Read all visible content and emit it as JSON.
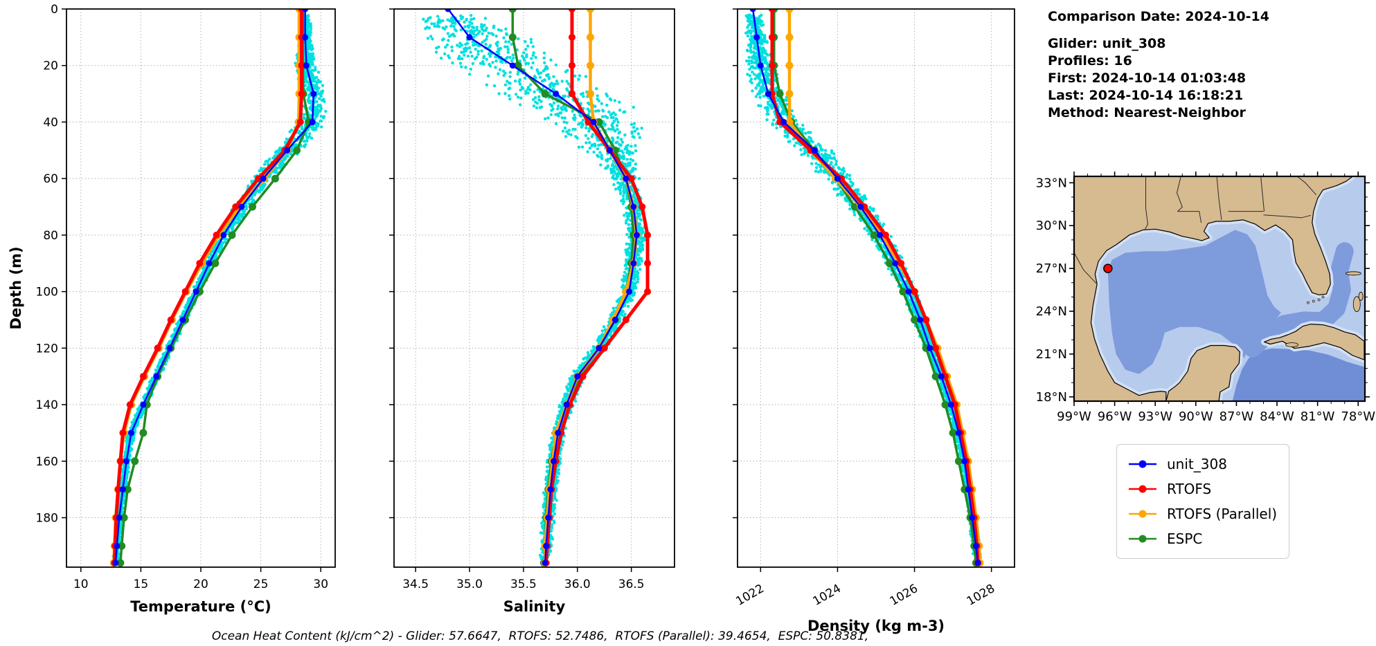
{
  "info": {
    "comparison_date": "Comparison Date: 2024-10-14",
    "glider": "Glider: unit_308",
    "profiles": "Profiles: 16",
    "first": "First: 2024-10-14 01:03:48",
    "last": "Last: 2024-10-14 16:18:21",
    "method": "Method: Nearest-Neighbor"
  },
  "legend": {
    "entries": [
      {
        "label": "unit_308",
        "color": "#0000ff"
      },
      {
        "label": "RTOFS",
        "color": "#ff0000"
      },
      {
        "label": "RTOFS (Parallel)",
        "color": "#ffa500"
      },
      {
        "label": "ESPC",
        "color": "#228b22"
      }
    ]
  },
  "caption": {
    "text": "Ocean Heat Content (kJ/cm^2) - Glider: 57.6647,  RTOFS: 52.7486,  RTOFS (Parallel): 39.4654,  ESPC: 50.8381,"
  },
  "map": {
    "lat_ticks": [
      {
        "value": 33,
        "label": "33°N"
      },
      {
        "value": 30,
        "label": "30°N"
      },
      {
        "value": 27,
        "label": "27°N"
      },
      {
        "value": 24,
        "label": "24°N"
      },
      {
        "value": 21,
        "label": "21°N"
      },
      {
        "value": 18,
        "label": "18°N"
      }
    ],
    "lon_ticks": [
      {
        "value": -99,
        "label": "99°W"
      },
      {
        "value": -96,
        "label": "96°W"
      },
      {
        "value": -93,
        "label": "93°W"
      },
      {
        "value": -90,
        "label": "90°W"
      },
      {
        "value": -87,
        "label": "87°W"
      },
      {
        "value": -84,
        "label": "84°W"
      },
      {
        "value": -81,
        "label": "81°W"
      },
      {
        "value": -78,
        "label": "78°W"
      }
    ],
    "marker": {
      "lon": -96.5,
      "lat": 27.0,
      "color": "#ff0000"
    },
    "colors": {
      "land": "#d6ba90",
      "shelf": "#b7cbec",
      "deep": "#7e9bdc",
      "caribbean": "#6f8ed6",
      "nearshore": "#d3e0f3"
    }
  },
  "chart_data": {
    "type": "line",
    "description": "Glider unit_308 vs model vertical profiles (depth profiles of temperature, salinity, density) with raw glider scatter",
    "ylabel": "Depth (m)",
    "ylim": [
      0,
      197.5
    ],
    "yticks": [
      0,
      20,
      40,
      60,
      80,
      100,
      120,
      140,
      160,
      180
    ],
    "depth_m": [
      0,
      10,
      20,
      30,
      40,
      50,
      60,
      70,
      80,
      90,
      100,
      110,
      120,
      130,
      140,
      150,
      160,
      170,
      180,
      190,
      196
    ],
    "series_meta": [
      {
        "key": "espc",
        "label": "ESPC",
        "color": "#228b22",
        "line_width": 3.5,
        "marker_radius": 5.5
      },
      {
        "key": "parallel",
        "label": "RTOFS (Parallel)",
        "color": "#ffa500",
        "line_width": 4.5,
        "marker_radius": 5.5
      },
      {
        "key": "rtofs",
        "label": "RTOFS",
        "color": "#ff0000",
        "line_width": 5,
        "marker_radius": 5
      },
      {
        "key": "glider",
        "label": "unit_308",
        "color": "#0000ff",
        "line_width": 2.5,
        "marker_radius": 4.5
      }
    ],
    "scatter": {
      "name": "glider-raw-points",
      "color": "#00e0e0",
      "count": 2600,
      "radius": 2.2,
      "seed": 42,
      "depth_range": [
        2,
        196
      ]
    },
    "panels": [
      {
        "name": "temperature",
        "xlabel": "Temperature (°C)",
        "xlim": [
          8.8,
          31.2
        ],
        "xticks": [
          10,
          15,
          20,
          25,
          30
        ],
        "xtick_labels": [
          "10",
          "15",
          "20",
          "25",
          "30"
        ],
        "scatter_halfwidth": [
          [
            0,
            0.25
          ],
          [
            15,
            0.9
          ],
          [
            45,
            1.3
          ],
          [
            70,
            0.8
          ],
          [
            100,
            0.4
          ],
          [
            196,
            0.3
          ]
        ],
        "series": {
          "glider": [
            28.7,
            28.7,
            28.8,
            29.4,
            29.3,
            27.2,
            25.2,
            23.4,
            21.9,
            20.7,
            19.6,
            18.5,
            17.4,
            16.3,
            15.2,
            14.2,
            13.8,
            13.5,
            13.2,
            13.0,
            12.9
          ],
          "rtofs": [
            28.4,
            28.4,
            28.4,
            28.4,
            28.3,
            27.0,
            24.8,
            22.9,
            21.3,
            19.9,
            18.7,
            17.5,
            16.4,
            15.2,
            14.1,
            13.5,
            13.3,
            13.1,
            12.95,
            12.85,
            12.8
          ],
          "parallel": [
            28.2,
            28.2,
            28.2,
            28.2,
            28.15,
            27.2,
            25.3,
            23.2,
            21.5,
            20.1,
            18.8,
            17.6,
            16.5,
            15.3,
            14.2,
            13.6,
            13.3,
            13.1,
            12.9,
            12.8,
            12.75
          ],
          "espc": [
            28.5,
            28.5,
            28.5,
            28.55,
            29.0,
            28.0,
            26.2,
            24.3,
            22.6,
            21.2,
            19.9,
            18.7,
            17.5,
            16.4,
            15.5,
            15.2,
            14.5,
            13.9,
            13.6,
            13.4,
            13.3
          ]
        }
      },
      {
        "name": "salinity",
        "xlabel": "Salinity",
        "xlim": [
          34.3,
          36.9
        ],
        "xticks": [
          34.5,
          35.0,
          35.5,
          36.0,
          36.5
        ],
        "xtick_labels": [
          "34.5",
          "35.0",
          "35.5",
          "36.0",
          "36.5"
        ],
        "scatter_halfwidth": [
          [
            0,
            0.25
          ],
          [
            10,
            0.6
          ],
          [
            35,
            0.6
          ],
          [
            55,
            0.18
          ],
          [
            70,
            0.1
          ],
          [
            120,
            0.08
          ],
          [
            196,
            0.06
          ]
        ],
        "series": {
          "glider": [
            34.8,
            35.0,
            35.4,
            35.8,
            36.15,
            36.3,
            36.45,
            36.52,
            36.55,
            36.52,
            36.48,
            36.35,
            36.2,
            36.0,
            35.9,
            35.82,
            35.78,
            35.75,
            35.73,
            35.71,
            35.7
          ],
          "rtofs": [
            35.95,
            35.95,
            35.95,
            35.95,
            36.1,
            36.3,
            36.5,
            36.6,
            36.65,
            36.65,
            36.65,
            36.45,
            36.25,
            36.05,
            35.93,
            35.85,
            35.8,
            35.76,
            35.74,
            35.72,
            35.71
          ],
          "parallel": [
            36.12,
            36.12,
            36.12,
            36.12,
            36.15,
            36.3,
            36.45,
            36.52,
            36.55,
            36.52,
            36.45,
            36.33,
            36.2,
            36.0,
            35.9,
            35.8,
            35.77,
            35.74,
            35.72,
            35.7,
            35.7
          ],
          "espc": [
            35.4,
            35.4,
            35.45,
            35.7,
            36.2,
            36.35,
            36.45,
            36.5,
            36.52,
            36.5,
            36.45,
            36.35,
            36.2,
            36.02,
            35.9,
            35.8,
            35.76,
            35.73,
            35.71,
            35.7,
            35.69
          ]
        }
      },
      {
        "name": "density",
        "xlabel": "Density (kg m-3)",
        "xlim": [
          1021.4,
          1028.6
        ],
        "xticks": [
          1022,
          1024,
          1026,
          1028
        ],
        "xtick_labels": [
          "1022",
          "1024",
          "1026",
          "1028"
        ],
        "xtick_rotation": 30,
        "scatter_halfwidth": [
          [
            0,
            0.2
          ],
          [
            20,
            0.4
          ],
          [
            50,
            0.5
          ],
          [
            80,
            0.3
          ],
          [
            120,
            0.15
          ],
          [
            196,
            0.1
          ]
        ],
        "series": {
          "glider": [
            1021.8,
            1021.9,
            1022.0,
            1022.2,
            1022.6,
            1023.4,
            1024.0,
            1024.6,
            1025.1,
            1025.5,
            1025.85,
            1026.15,
            1026.4,
            1026.7,
            1026.95,
            1027.15,
            1027.3,
            1027.4,
            1027.5,
            1027.6,
            1027.65
          ],
          "rtofs": [
            1022.3,
            1022.3,
            1022.3,
            1022.3,
            1022.5,
            1023.3,
            1024.1,
            1024.7,
            1025.25,
            1025.65,
            1026.0,
            1026.3,
            1026.55,
            1026.8,
            1027.05,
            1027.2,
            1027.35,
            1027.45,
            1027.55,
            1027.62,
            1027.65
          ],
          "parallel": [
            1022.75,
            1022.75,
            1022.75,
            1022.75,
            1022.75,
            1023.3,
            1023.95,
            1024.6,
            1025.15,
            1025.6,
            1026.0,
            1026.3,
            1026.6,
            1026.85,
            1027.1,
            1027.25,
            1027.4,
            1027.5,
            1027.6,
            1027.68,
            1027.7
          ],
          "espc": [
            1022.35,
            1022.35,
            1022.35,
            1022.5,
            1022.8,
            1023.4,
            1023.95,
            1024.45,
            1024.95,
            1025.35,
            1025.7,
            1026.0,
            1026.3,
            1026.55,
            1026.8,
            1027.0,
            1027.15,
            1027.3,
            1027.45,
            1027.55,
            1027.6
          ]
        }
      }
    ]
  }
}
